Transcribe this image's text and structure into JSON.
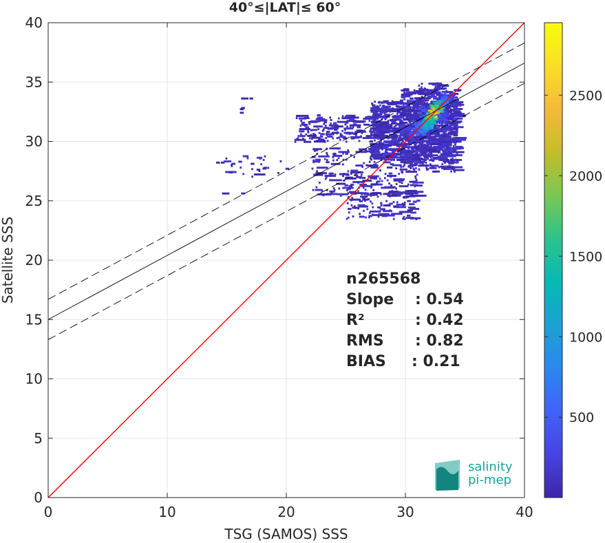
{
  "chart_data": {
    "type": "scatter",
    "title": "40°≤|LAT|≤ 60°",
    "xlabel": "TSG (SAMOS) SSS",
    "ylabel": "Satellite SSS",
    "xlim": [
      0,
      40
    ],
    "ylim": [
      0,
      40
    ],
    "xticks": [
      "0",
      "10",
      "20",
      "30",
      "40"
    ],
    "yticks": [
      "0",
      "5",
      "10",
      "15",
      "20",
      "25",
      "30",
      "35",
      "40"
    ],
    "grid": true,
    "reference_line": {
      "slope": 1,
      "intercept": 0,
      "color": "#ff0000"
    },
    "fit_line": {
      "slope": 0.54,
      "intercept": 15.0,
      "color": "#000000"
    },
    "fit_band": {
      "upper_intercept": 16.7,
      "lower_intercept": 13.3
    },
    "density_cells": [
      {
        "x": 32.2,
        "y": 32.4,
        "c": 2700
      },
      {
        "x": 32.4,
        "y": 32.7,
        "c": 2400
      },
      {
        "x": 32.0,
        "y": 32.0,
        "c": 2100
      },
      {
        "x": 32.6,
        "y": 33.0,
        "c": 1800
      },
      {
        "x": 31.8,
        "y": 31.8,
        "c": 1600
      },
      {
        "x": 31.6,
        "y": 31.5,
        "c": 1300
      },
      {
        "x": 32.8,
        "y": 33.2,
        "c": 1100
      },
      {
        "x": 31.4,
        "y": 31.2,
        "c": 900
      },
      {
        "x": 33.0,
        "y": 33.4,
        "c": 800
      },
      {
        "x": 31.2,
        "y": 31.0,
        "c": 700
      },
      {
        "x": 30.9,
        "y": 31.4,
        "c": 500
      },
      {
        "x": 31.5,
        "y": 32.6,
        "c": 450
      },
      {
        "x": 32.9,
        "y": 32.2,
        "c": 420
      },
      {
        "x": 30.5,
        "y": 30.8,
        "c": 380
      },
      {
        "x": 33.4,
        "y": 33.8,
        "c": 330
      },
      {
        "x": 29.8,
        "y": 31.0,
        "c": 260
      }
    ],
    "scatter_regions": [
      {
        "x": [
          27.0,
          34.3
        ],
        "y": [
          28.5,
          33.5
        ],
        "n": 900
      },
      {
        "x": [
          29.5,
          34.3
        ],
        "y": [
          27.5,
          34.5
        ],
        "n": 500
      },
      {
        "x": [
          20.5,
          31.0
        ],
        "y": [
          30.0,
          32.3
        ],
        "n": 260
      },
      {
        "x": [
          22.0,
          31.0
        ],
        "y": [
          25.5,
          29.5
        ],
        "n": 240
      },
      {
        "x": [
          25.0,
          31.0
        ],
        "y": [
          23.5,
          26.0
        ],
        "n": 120
      },
      {
        "x": [
          31.0,
          33.0
        ],
        "y": [
          34.0,
          35.0
        ],
        "n": 30
      },
      {
        "x": [
          14.0,
          20.0
        ],
        "y": [
          27.0,
          29.0
        ],
        "n": 25
      }
    ],
    "outlier_points": [
      {
        "x": 16.2,
        "y": 33.7
      },
      {
        "x": 16.5,
        "y": 33.7
      },
      {
        "x": 16.9,
        "y": 33.7
      },
      {
        "x": 16.1,
        "y": 32.8
      },
      {
        "x": 16.1,
        "y": 32.5
      },
      {
        "x": 16.2,
        "y": 32.9
      },
      {
        "x": 14.1,
        "y": 28.3
      },
      {
        "x": 14.5,
        "y": 28.3
      },
      {
        "x": 15.4,
        "y": 28.2
      },
      {
        "x": 17.0,
        "y": 28.2
      },
      {
        "x": 18.0,
        "y": 27.8
      },
      {
        "x": 17.5,
        "y": 27.7
      },
      {
        "x": 14.6,
        "y": 25.7
      },
      {
        "x": 14.9,
        "y": 25.7
      },
      {
        "x": 16.2,
        "y": 25.7
      }
    ],
    "color_scale": {
      "min": 1,
      "max": 2950,
      "ticks": [
        "500",
        "1000",
        "1500",
        "2000",
        "2500"
      ],
      "colormap": [
        "#3e26a8",
        "#4743e2",
        "#4163f7",
        "#2c87ef",
        "#1aa2d4",
        "#06b9b3",
        "#2dc38d",
        "#7ac753",
        "#c4bd2a",
        "#f5b93b",
        "#f9df27",
        "#f9fb0e"
      ]
    },
    "stats": [
      {
        "label": "n",
        "sep": ": 265568"
      },
      {
        "label": "Slope",
        "sep": ": 0.54"
      },
      {
        "label": "R²",
        "sep": ": 0.42"
      },
      {
        "label": "RMS",
        "sep": ": 0.82"
      },
      {
        "label": "BIAS",
        "sep": ": 0.21"
      }
    ]
  },
  "logo": {
    "line1": "salinity",
    "line2": "pi-mep",
    "color": "#1aa39a"
  }
}
